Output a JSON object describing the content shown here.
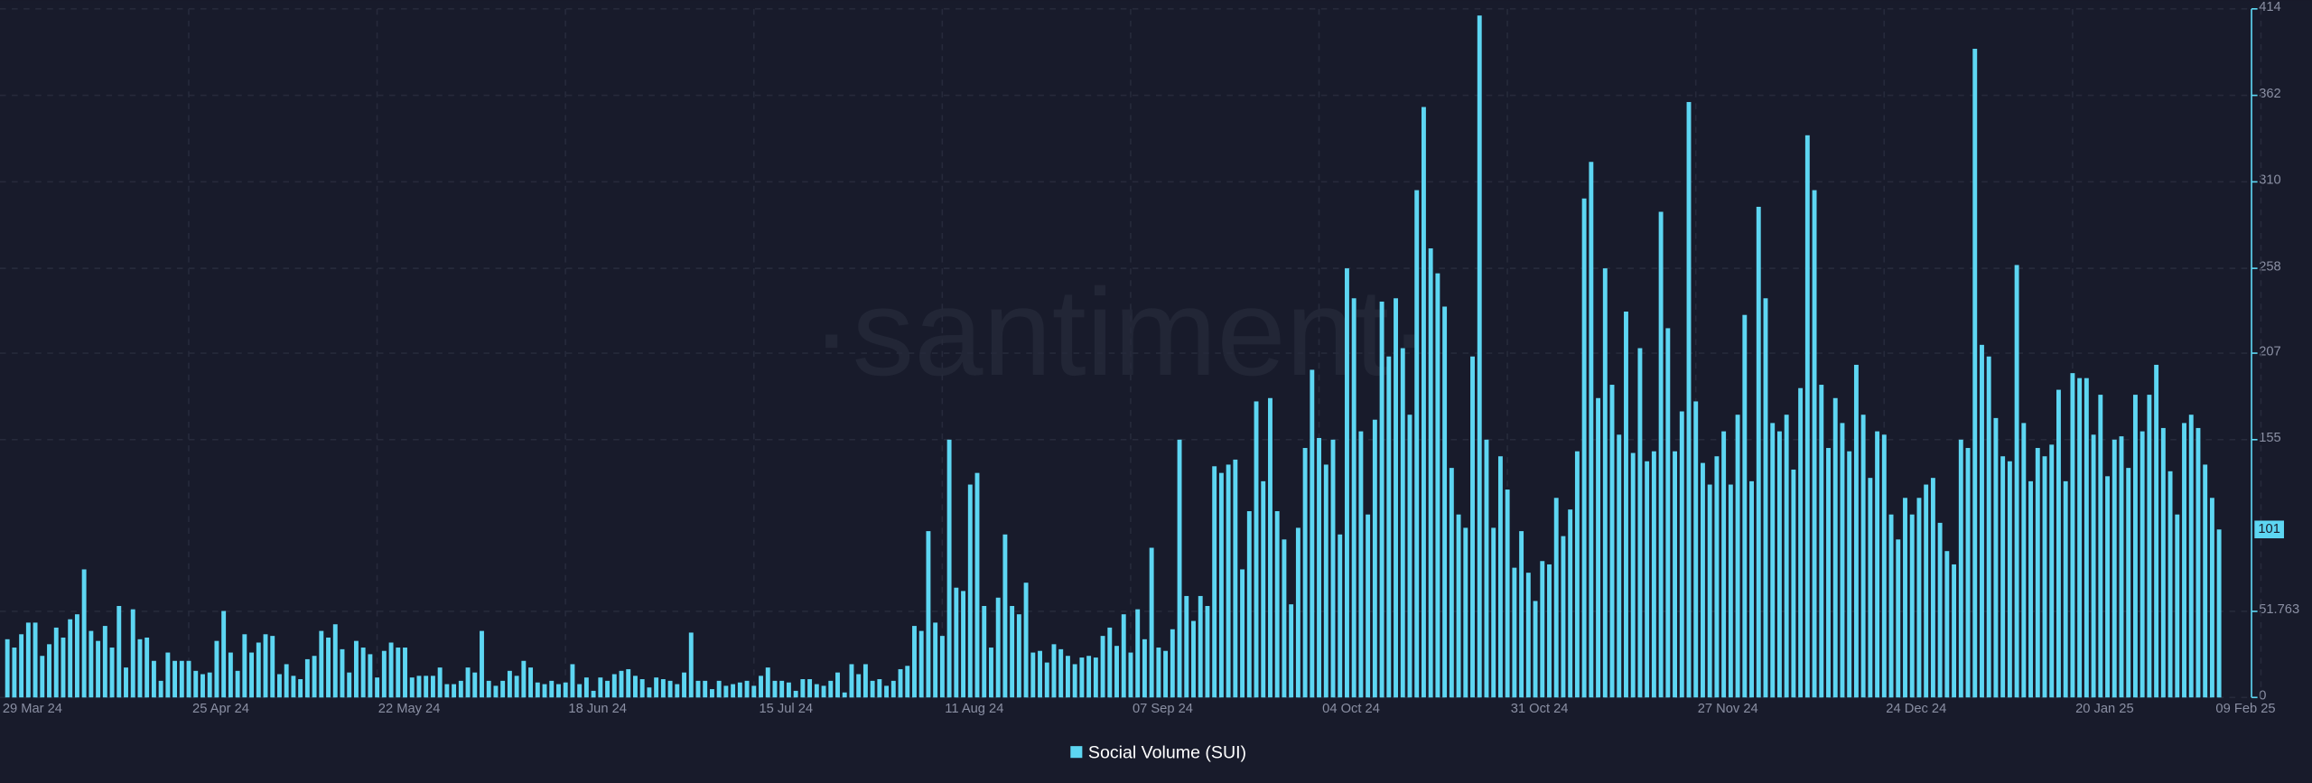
{
  "chart_data": {
    "type": "bar",
    "watermark": "·santiment·",
    "series": [
      {
        "name": "Social Volume (SUI)",
        "color": "#5dd6f2",
        "values": [
          35,
          30,
          38,
          45,
          45,
          25,
          32,
          42,
          36,
          47,
          50,
          77,
          40,
          34,
          43,
          30,
          55,
          18,
          53,
          35,
          36,
          22,
          10,
          27,
          22,
          22,
          22,
          16,
          14,
          15,
          34,
          52,
          27,
          16,
          38,
          27,
          33,
          38,
          37,
          14,
          20,
          13,
          11,
          23,
          25,
          40,
          36,
          44,
          29,
          15,
          34,
          30,
          26,
          12,
          28,
          33,
          30,
          30,
          12,
          13,
          13,
          13,
          18,
          8,
          8,
          10,
          18,
          15,
          40,
          10,
          7,
          10,
          16,
          13,
          22,
          18,
          9,
          8,
          10,
          8,
          9,
          20,
          8,
          12,
          4,
          12,
          10,
          14,
          16,
          17,
          13,
          11,
          6,
          12,
          11,
          10,
          8,
          15,
          39,
          10,
          10,
          5,
          10,
          7,
          8,
          9,
          10,
          7,
          13,
          18,
          10,
          10,
          9,
          4,
          11,
          11,
          8,
          7,
          10,
          15,
          3,
          20,
          14,
          20,
          10,
          11,
          7,
          10,
          17,
          19,
          43,
          40,
          100,
          45,
          37,
          155,
          66,
          64,
          128,
          135,
          55,
          30,
          60,
          98,
          55,
          50,
          69,
          27,
          28,
          21,
          32,
          29,
          25,
          20,
          24,
          25,
          24,
          37,
          42,
          31,
          50,
          27,
          53,
          35,
          90,
          30,
          28,
          41,
          155,
          61,
          46,
          61,
          55,
          139,
          135,
          140,
          143,
          77,
          112,
          178,
          130,
          180,
          112,
          95,
          56,
          102,
          150,
          197,
          156,
          140,
          155,
          98,
          258,
          240,
          160,
          110,
          167,
          238,
          205,
          240,
          210,
          170,
          305,
          355,
          270,
          255,
          235,
          138,
          110,
          102,
          205,
          410,
          155,
          102,
          145,
          125,
          78,
          100,
          75,
          58,
          82,
          80,
          120,
          97,
          113,
          148,
          300,
          322,
          180,
          258,
          188,
          158,
          232,
          147,
          210,
          142,
          148,
          292,
          222,
          148,
          172,
          358,
          178,
          141,
          128,
          145,
          160,
          128,
          170,
          230,
          130,
          295,
          240,
          165,
          160,
          170,
          137,
          186,
          338,
          305,
          188,
          150,
          180,
          165,
          148,
          200,
          170,
          132,
          160,
          158,
          110,
          95,
          120,
          110,
          120,
          128,
          132,
          105,
          88,
          80,
          155,
          150,
          390,
          212,
          205,
          168,
          145,
          142,
          260,
          165,
          130,
          150,
          145,
          152,
          185,
          130,
          195,
          192,
          192,
          158,
          182,
          133,
          155,
          157,
          138,
          182,
          160,
          182,
          200,
          162,
          136,
          110,
          165,
          170,
          162,
          140,
          120,
          101
        ]
      }
    ],
    "categories": [
      "29 Mar 24",
      null,
      null,
      null,
      null,
      null,
      null,
      null,
      null,
      null,
      null,
      null,
      null,
      null,
      null,
      null,
      null,
      null,
      null,
      null,
      null,
      null,
      null,
      null,
      null,
      null,
      null,
      "25 Apr 24",
      null,
      null,
      null,
      null,
      null,
      null,
      null,
      null,
      null,
      null,
      null,
      null,
      null,
      null,
      null,
      null,
      null,
      null,
      null,
      null,
      null,
      null,
      null,
      null,
      null,
      null,
      "22 May 24",
      null,
      null,
      null,
      null,
      null,
      null,
      null,
      null,
      null,
      null,
      null,
      null,
      null,
      null,
      null,
      null,
      null,
      null,
      null,
      null,
      null,
      null,
      null,
      null,
      null,
      null,
      "18 Jun 24",
      null,
      null,
      null,
      null,
      null,
      null,
      null,
      null,
      null,
      null,
      null,
      null,
      null,
      null,
      null,
      null,
      null,
      null,
      null,
      null,
      null,
      null,
      null,
      null,
      null,
      null,
      "15 Jul 24",
      null,
      null,
      null,
      null,
      null,
      null,
      null,
      null,
      null,
      null,
      null,
      null,
      null,
      null,
      null,
      null,
      null,
      null,
      null,
      null,
      null,
      null,
      null,
      null,
      null,
      null,
      "11 Aug 24",
      null,
      null,
      null,
      null,
      null,
      null,
      null,
      null,
      null,
      null,
      null,
      null,
      null,
      null,
      null,
      null,
      null,
      null,
      null,
      null,
      null,
      null,
      null,
      null,
      null,
      null,
      "07 Sep 24",
      null,
      null,
      null,
      null,
      null,
      null,
      null,
      null,
      null,
      null,
      null,
      null,
      null,
      null,
      null,
      null,
      null,
      null,
      null,
      null,
      null,
      null,
      null,
      null,
      null,
      null,
      "04 Oct 24",
      null,
      null,
      null,
      null,
      null,
      null,
      null,
      null,
      null,
      null,
      null,
      null,
      null,
      null,
      null,
      null,
      null,
      null,
      null,
      null,
      null,
      null,
      null,
      null,
      null,
      null,
      "31 Oct 24",
      null,
      null,
      null,
      null,
      null,
      null,
      null,
      null,
      null,
      null,
      null,
      null,
      null,
      null,
      null,
      null,
      null,
      null,
      null,
      null,
      null,
      null,
      null,
      null,
      null,
      null,
      "27 Nov 24",
      null,
      null,
      null,
      null,
      null,
      null,
      null,
      null,
      null,
      null,
      null,
      null,
      null,
      null,
      null,
      null,
      null,
      null,
      null,
      null,
      null,
      null,
      null,
      null,
      null,
      null,
      "24 Dec 24",
      null,
      null,
      null,
      null,
      null,
      null,
      null,
      null,
      null,
      null,
      null,
      null,
      null,
      null,
      null,
      null,
      null,
      null,
      null,
      null,
      null,
      null,
      null,
      null,
      null,
      null,
      "20 Jan 25",
      null,
      null,
      null,
      null,
      null,
      null,
      null,
      null,
      null,
      null,
      null,
      null,
      null,
      null,
      null,
      null,
      null,
      null,
      null,
      "09 Feb 25"
    ],
    "ylim": [
      0,
      414
    ],
    "yticks": [
      0,
      51.763,
      155,
      207,
      258,
      310,
      362,
      414
    ],
    "grid": true,
    "legend": "bottom"
  }
}
